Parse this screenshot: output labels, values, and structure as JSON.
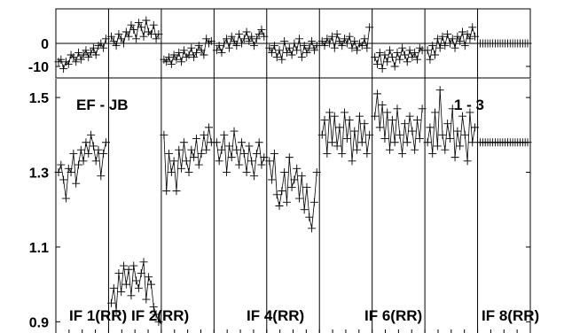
{
  "chart_data": {
    "type": "line",
    "panels": 9,
    "phase": {
      "ylim": [
        -15,
        15
      ],
      "ticks": [
        {
          "value": 0,
          "label": "0"
        },
        {
          "value": -10,
          "label": "-10"
        }
      ],
      "zero_line": true,
      "series": [
        [
          -8,
          -7,
          -11,
          -8,
          -9,
          -5,
          -6,
          -8,
          -4,
          -7,
          -5,
          -3,
          -6,
          -4,
          -2,
          -5,
          -1,
          0,
          -2,
          2
        ],
        [
          3,
          1,
          -1,
          4,
          2,
          0,
          5,
          3,
          8,
          6,
          2,
          9,
          7,
          3,
          10,
          5,
          4,
          8,
          2,
          4
        ],
        [
          -7,
          -8,
          -6,
          -9,
          -5,
          -7,
          -4,
          -8,
          -3,
          -6,
          -5,
          -2,
          -6,
          -4,
          -1,
          -3,
          -5,
          2,
          0,
          1
        ],
        [
          -3,
          -1,
          -4,
          0,
          2,
          -2,
          3,
          1,
          -1,
          4,
          0,
          2,
          5,
          1,
          3,
          -1,
          2,
          4,
          6,
          3
        ],
        [
          -2,
          -4,
          -1,
          -6,
          -3,
          -7,
          1,
          -4,
          -2,
          -5,
          0,
          -3,
          2,
          -6,
          -1,
          -4,
          -2,
          1,
          -3,
          -1
        ],
        [
          1,
          -1,
          2,
          0,
          3,
          -2,
          4,
          1,
          -1,
          2,
          0,
          3,
          -2,
          1,
          -3,
          0,
          -1,
          2,
          -2,
          7
        ],
        [
          -6,
          -9,
          -4,
          -11,
          -5,
          -8,
          -3,
          -6,
          -10,
          -4,
          -7,
          -2,
          -5,
          -8,
          -3,
          -6,
          -4,
          -7,
          -2,
          -3
        ],
        [
          -3,
          -7,
          -1,
          -5,
          2,
          -2,
          3,
          -1,
          4,
          0,
          2,
          -2,
          3,
          1,
          5,
          -1,
          4,
          2,
          7,
          3
        ],
        [
          0,
          0,
          0,
          0,
          0,
          0,
          0,
          0,
          0,
          0,
          0,
          0,
          0,
          0,
          0,
          0,
          0,
          0,
          0,
          0
        ]
      ]
    },
    "amplitude": {
      "ylim": [
        0.87,
        1.55
      ],
      "ticks": [
        {
          "value": 1.5,
          "label": "1.5"
        },
        {
          "value": 1.3,
          "label": "1.3"
        },
        {
          "value": 1.1,
          "label": "1.1"
        },
        {
          "value": 0.9,
          "label": "0.9"
        }
      ],
      "series": [
        [
          1.3,
          1.32,
          1.28,
          1.23,
          1.31,
          1.3,
          1.35,
          1.27,
          1.32,
          1.36,
          1.33,
          1.38,
          1.35,
          1.4,
          1.37,
          1.33,
          1.36,
          1.29,
          1.35,
          1.38
        ],
        [
          0.95,
          0.99,
          0.93,
          1.03,
          0.98,
          1.05,
          1.0,
          1.04,
          0.97,
          1.05,
          1.01,
          0.99,
          1.03,
          1.06,
          0.96,
          1.02,
          1.0,
          0.94,
          0.92,
          0.9
        ],
        [
          1.4,
          1.25,
          1.35,
          1.3,
          1.33,
          1.25,
          1.36,
          1.31,
          1.38,
          1.33,
          1.3,
          1.36,
          1.34,
          1.39,
          1.32,
          1.35,
          1.4,
          1.36,
          1.42,
          1.38
        ],
        [
          1.38,
          1.33,
          1.36,
          1.4,
          1.3,
          1.37,
          1.34,
          1.41,
          1.36,
          1.32,
          1.38,
          1.35,
          1.3,
          1.37,
          1.33,
          1.29,
          1.35,
          1.38,
          1.32,
          1.34
        ],
        [
          1.33,
          1.28,
          1.35,
          1.24,
          1.21,
          1.25,
          1.3,
          1.22,
          1.34,
          1.26,
          1.28,
          1.31,
          1.23,
          1.29,
          1.2,
          1.26,
          1.18,
          1.15,
          1.22,
          1.3
        ],
        [
          1.4,
          1.44,
          1.35,
          1.46,
          1.38,
          1.45,
          1.37,
          1.42,
          1.35,
          1.46,
          1.39,
          1.44,
          1.33,
          1.41,
          1.36,
          1.45,
          1.38,
          1.43,
          1.35,
          1.4
        ],
        [
          1.45,
          1.51,
          1.42,
          1.48,
          1.39,
          1.46,
          1.36,
          1.44,
          1.38,
          1.47,
          1.4,
          1.35,
          1.43,
          1.38,
          1.45,
          1.41,
          1.36,
          1.44,
          1.39,
          1.47
        ],
        [
          1.38,
          1.42,
          1.35,
          1.46,
          1.37,
          1.52,
          1.4,
          1.36,
          1.43,
          1.39,
          1.47,
          1.34,
          1.41,
          1.37,
          1.45,
          1.4,
          1.33,
          1.46,
          1.38,
          1.42
        ],
        [
          1.38,
          1.38,
          1.38,
          1.38,
          1.38,
          1.38,
          1.38,
          1.38,
          1.38,
          1.38,
          1.38,
          1.38,
          1.38,
          1.38,
          1.38,
          1.38,
          1.38,
          1.38,
          1.38,
          1.38
        ]
      ]
    },
    "annotations": {
      "baseline": "EF - JB",
      "scan": "1 - 3",
      "if_labels": [
        "IF 1(RR)",
        "IF 2(RR)",
        "IF 4(RR)",
        "IF 6(RR)",
        "IF 8(RR)"
      ]
    }
  }
}
